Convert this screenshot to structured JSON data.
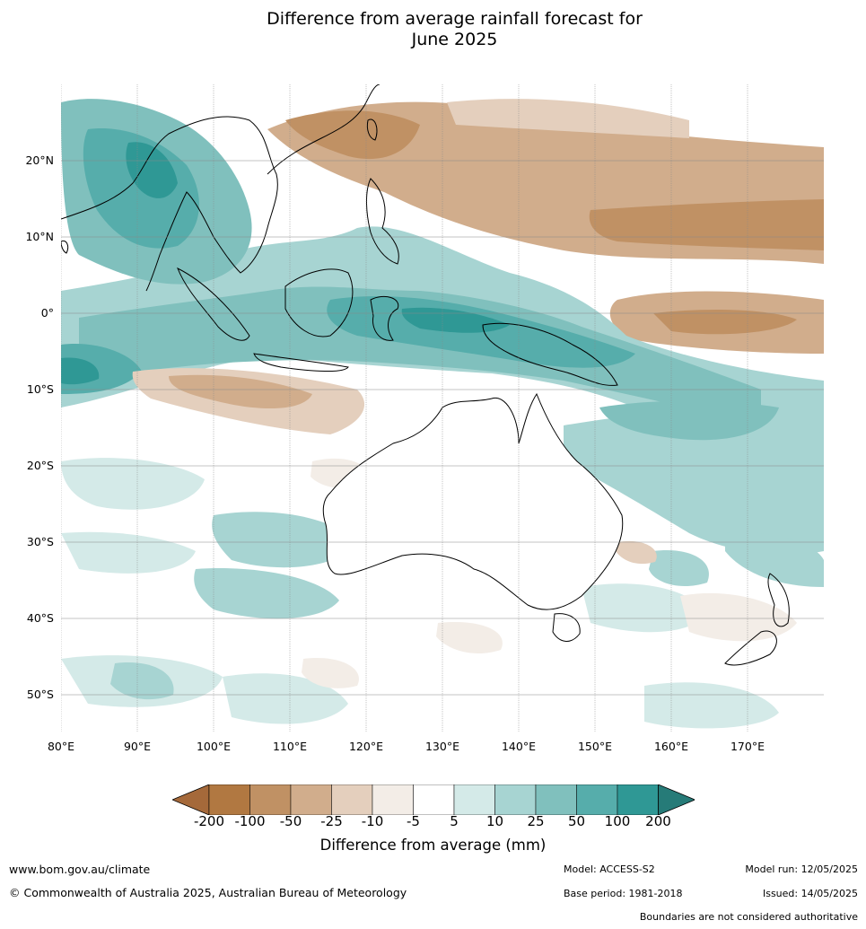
{
  "title_line1": "Difference from average rainfall forecast for",
  "title_line2": "June 2025",
  "map": {
    "lat_labels": [
      "20°N",
      "10°N",
      "0°",
      "10°S",
      "20°S",
      "30°S",
      "40°S",
      "50°S"
    ],
    "lon_labels": [
      "80°E",
      "90°E",
      "100°E",
      "110°E",
      "120°E",
      "130°E",
      "140°E",
      "150°E",
      "160°E",
      "170°E"
    ]
  },
  "colorbar": {
    "ticks": [
      "-200",
      "-100",
      "-50",
      "-25",
      "-10",
      "-5",
      "5",
      "10",
      "25",
      "50",
      "100",
      "200"
    ],
    "colors": [
      "#a5693a",
      "#b17841",
      "#c09164",
      "#d1ad8c",
      "#e4cfbd",
      "#f3ede7",
      "#ffffff",
      "#d4eae8",
      "#a7d4d2",
      "#80c0bd",
      "#56adab",
      "#2f9895",
      "#267b78"
    ],
    "label": "Difference from average (mm)"
  },
  "footer": {
    "website": "www.bom.gov.au/climate",
    "copyright": "© Commonwealth of Australia 2025, Australian Bureau of Meteorology",
    "model": "Model: ACCESS-S2",
    "base_period": "Base period: 1981-2018",
    "model_run": "Model run: 12/05/2025",
    "issued": "Issued: 14/05/2025",
    "disclaimer": "Boundaries are not considered authoritative"
  }
}
